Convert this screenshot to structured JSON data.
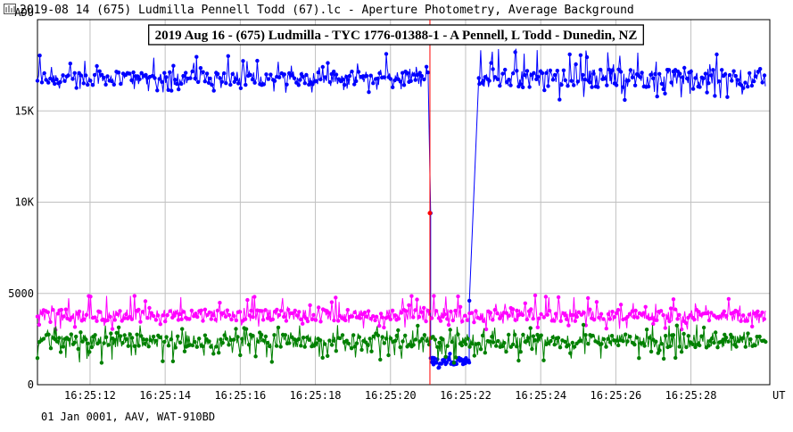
{
  "window": {
    "title": "2019-08 14 (675) Ludmilla Pennell Todd (67).lc - Aperture Photometry, Average Background",
    "icon": "chart-icon"
  },
  "footer": {
    "text": "01 Jan 0001, AAV, WAT-910BD"
  },
  "chart_data": {
    "type": "line",
    "title": "2019 Aug 16 - (675) Ludmilla - TYC 1776-01388-1 - A Pennell, L Todd - Dunedin, NZ",
    "ylabel": "ADU",
    "xlabel": "UT",
    "ylim": [
      0,
      20000
    ],
    "y_ticks": [
      0,
      5000,
      10000,
      15000
    ],
    "y_tick_labels": [
      "0",
      "5000",
      "10K",
      "15K"
    ],
    "x_tick_labels": [
      "16:25:12",
      "16:25:14",
      "16:25:16",
      "16:25:18",
      "16:25:20",
      "16:25:22",
      "16:25:24",
      "16:25:26",
      "16:25:28"
    ],
    "xlim_seconds": [
      10.6,
      30.1
    ],
    "x_ticks_seconds": [
      12,
      14,
      16,
      18,
      20,
      22,
      24,
      26,
      28
    ],
    "grid": true,
    "marker_at_seconds": 21.05,
    "colors": {
      "target": "#0000ff",
      "comparison": "#ff00ff",
      "third": "#008000",
      "marker": "#ff0000"
    },
    "series": [
      {
        "color_key": "target",
        "segments": [
          {
            "x_start": 10.6,
            "x_end": 21.0,
            "noise": [
              16000,
              18200
            ],
            "base": 16800
          },
          {
            "x_start": 21.0,
            "x_end": 21.07,
            "values": [
              17100,
              9400
            ]
          },
          {
            "x_start": 21.07,
            "x_end": 22.1,
            "noise": [
              900,
              2000
            ],
            "base": 1300
          },
          {
            "x_start": 22.1,
            "x_end": 22.35,
            "values": [
              4600,
              16800
            ]
          },
          {
            "x_start": 22.35,
            "x_end": 30.0,
            "noise": [
              15600,
              18500
            ],
            "base": 16800
          }
        ]
      },
      {
        "color_key": "comparison",
        "segments": [
          {
            "x_start": 10.6,
            "x_end": 30.0,
            "noise": [
              3000,
              4900
            ],
            "base": 3800
          }
        ]
      },
      {
        "color_key": "third",
        "segments": [
          {
            "x_start": 10.6,
            "x_end": 30.0,
            "noise": [
              1200,
              3300
            ],
            "base": 2400
          }
        ]
      }
    ]
  }
}
